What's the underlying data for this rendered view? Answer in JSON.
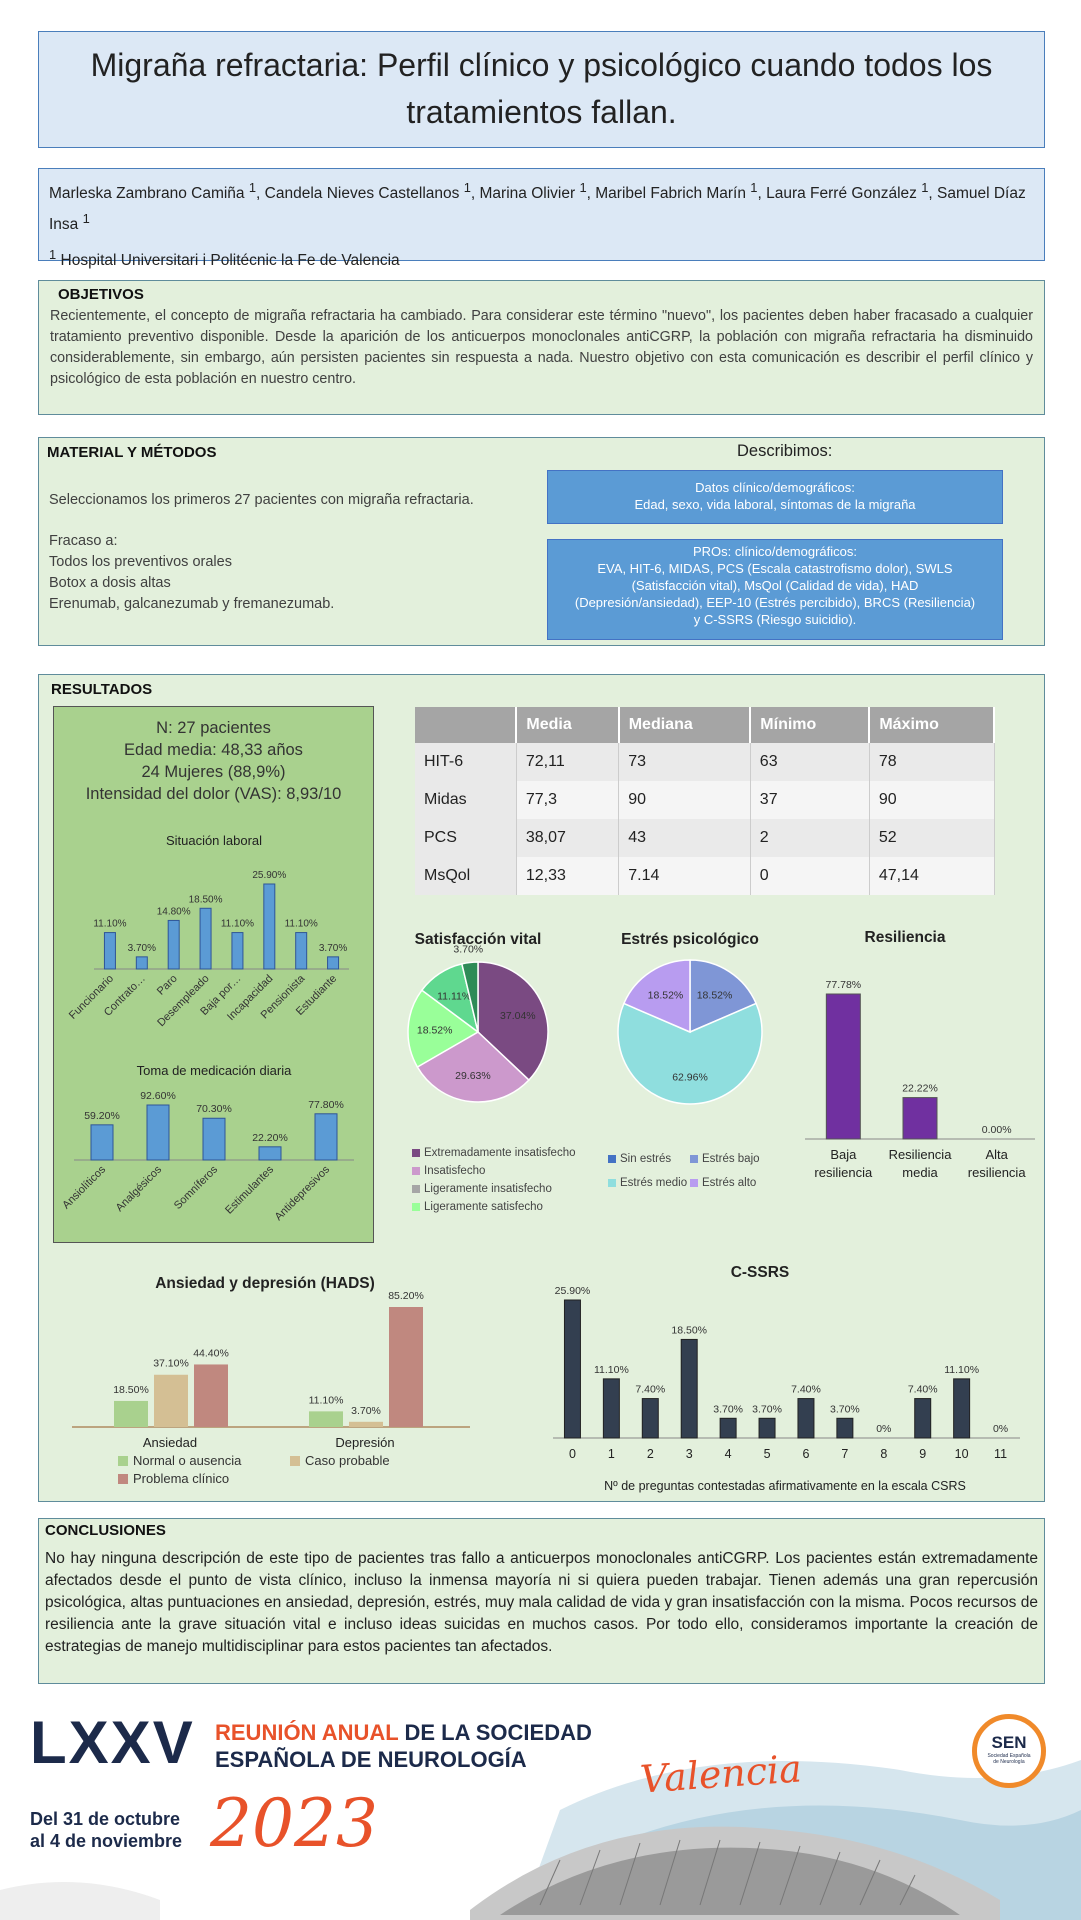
{
  "title": "Migraña refractaria: Perfil clínico y psicológico cuando todos los tratamientos fallan.",
  "authors": {
    "names": [
      {
        "name": "Marleska Zambrano Camiña",
        "sup": "1"
      },
      {
        "name": "Candela Nieves Castellanos",
        "sup": "1"
      },
      {
        "name": "Marina Olivier",
        "sup": "1"
      },
      {
        "name": "Maribel Fabrich Marín",
        "sup": "1"
      },
      {
        "name": "Laura Ferré González",
        "sup": "1"
      },
      {
        "name": "Samuel Díaz Insa",
        "sup": "1"
      }
    ],
    "affiliation_sup": "1",
    "affiliation": "Hospital Universitari i Politécnic la Fe de Valencia"
  },
  "objetivos": {
    "heading": "OBJETIVOS",
    "text": "Recientemente, el concepto de migraña refractaria ha cambiado. Para considerar este término \"nuevo\", los pacientes deben haber fracasado a cualquier tratamiento preventivo disponible. Desde la aparición de los anticuerpos monoclonales antiCGRP, la población con migraña refractaria ha disminuido considerablemente, sin embargo, aún persisten pacientes sin respuesta a nada. Nuestro objetivo con esta comunicación es describir el perfil clínico y psicológico de esta población en nuestro centro."
  },
  "metodos": {
    "heading": "MATERIAL Y MÉTODOS",
    "intro": "Seleccionamos los primeros 27 pacientes con migraña refractaria.",
    "fracaso_label": "Fracaso a:",
    "fracaso_items": [
      "Todos los preventivos orales",
      "Botox a dosis altas",
      "Erenumab, galcanezumab y fremanezumab."
    ],
    "describimos": "Describimos:",
    "box1_title": "Datos clínico/demográficos:",
    "box1_text": "Edad, sexo, vida laboral, síntomas de la migraña",
    "box2_title": "PROs: clínico/demográficos:",
    "box2_text": "EVA, HIT-6, MIDAS, PCS (Escala catastrofismo dolor), SWLS (Satisfacción vital), MsQol (Calidad de vida), HAD (Depresión/ansiedad), EEP-10 (Estrés percibido), BRCS (Resiliencia) y C-SSRS (Riesgo suicidio)."
  },
  "resultados": {
    "heading": "RESULTADOS",
    "summary": [
      "N: 27 pacientes",
      "Edad media: 48,33 años",
      "24 Mujeres (88,9%)",
      "Intensidad del dolor (VAS): 8,93/10"
    ],
    "table": {
      "headers": [
        "",
        "Media",
        "Mediana",
        "Mínimo",
        "Máximo"
      ],
      "rows": [
        [
          "HIT-6",
          "72,11",
          "73",
          "63",
          "78"
        ],
        [
          "Midas",
          "77,3",
          "90",
          "37",
          "90"
        ],
        [
          "PCS",
          "38,07",
          "43",
          "2",
          "52"
        ],
        [
          "MsQol",
          "12,33",
          "7.14",
          "0",
          "47,14"
        ]
      ]
    }
  },
  "conclusiones": {
    "heading": "CONCLUSIONES",
    "text": " No hay ninguna descripción de este tipo de pacientes tras fallo a anticuerpos monoclonales antiCGRP. Los pacientes están extremadamente afectados desde el punto de vista clínico, incluso la inmensa mayoría ni si quiera pueden trabajar. Tienen además una gran repercusión psicológica, altas puntuaciones en ansiedad, depresión, estrés, muy mala calidad de vida y gran insatisfacción con la misma. Pocos recursos de resiliencia ante la grave situación vital e incluso ideas suicidas en muchos casos. Por todo ello, consideramos importante la creación de estrategias de manejo multidisciplinar para estos pacientes tan afectados."
  },
  "banner": {
    "roman": "LXXV",
    "line1a": "REUNIÓN ANUAL",
    "line1b": " DE LA SOCIEDAD",
    "line2": "ESPAÑOLA DE NEUROLOGÍA",
    "city": "Valencia",
    "dates1": "Del 31 de octubre",
    "dates2": "al 4 de noviembre",
    "year": "2023",
    "logo_text": "SEN",
    "logo_sub": "Sociedad Española de Neurología"
  },
  "colors": {
    "blue_bar": "#5b9bd5",
    "purple": "#7030a0",
    "navy": "#333f50",
    "orange": "#e8522a"
  },
  "chart_data": [
    {
      "id": "laboral",
      "type": "bar",
      "title": "Situación laboral",
      "categories": [
        "Funcionario",
        "Contrato…",
        "Paro",
        "Desempleado",
        "Baja por…",
        "Incapacidad",
        "Pensionista",
        "Estudiante"
      ],
      "values": [
        11.1,
        3.7,
        14.8,
        18.5,
        11.1,
        25.9,
        11.1,
        3.7
      ],
      "labels": [
        "11.10%",
        "3.70%",
        "14.80%",
        "18.50%",
        "11.10%",
        "25.90%",
        "11.10%",
        "3.70%"
      ]
    },
    {
      "id": "medicacion",
      "type": "bar",
      "title": "Toma de medicación diaria",
      "categories": [
        "Ansiolíticos",
        "Analgésicos",
        "Somníferos",
        "Estimulantes",
        "Antidepresivos"
      ],
      "values": [
        59.2,
        92.6,
        70.3,
        22.2,
        77.8
      ],
      "labels": [
        "59.20%",
        "92.60%",
        "70.30%",
        "22.20%",
        "77.80%"
      ]
    },
    {
      "id": "satisfaccion",
      "type": "pie",
      "title": "Satisfacción vital",
      "slices": [
        {
          "name": "Extremadamente insatisfecho",
          "value": 37.04,
          "label": "37.04%",
          "color": "#7a4a82"
        },
        {
          "name": "Insatisfecho",
          "value": 29.63,
          "label": "29.63%",
          "color": "#cc99cc"
        },
        {
          "name": "Ligeramente insatisfecho",
          "value": 0,
          "label": "",
          "color": "#a6a6a6"
        },
        {
          "name": "Ligeramente satisfecho",
          "value": 18.52,
          "label": "18.52%",
          "color": "#99ff99"
        },
        {
          "name": "",
          "value": 11.11,
          "label": "11.11%",
          "color": "#5fd88f"
        },
        {
          "name": "",
          "value": 3.7,
          "label": "3.70%",
          "color": "#2e8b57"
        }
      ]
    },
    {
      "id": "estres",
      "type": "pie",
      "title": "Estrés psicológico",
      "slices": [
        {
          "name": "Sin estrés",
          "value": 0,
          "label": "",
          "color": "#4472c4"
        },
        {
          "name": "Estrés bajo",
          "value": 18.52,
          "label": "18.52%",
          "color": "#7f96d6"
        },
        {
          "name": "Estrés medio",
          "value": 62.96,
          "label": "62.96%",
          "color": "#8fdede"
        },
        {
          "name": "Estrés alto",
          "value": 18.52,
          "label": "18.52%",
          "color": "#b89cf0"
        }
      ]
    },
    {
      "id": "resiliencia",
      "type": "bar",
      "title": "Resiliencia",
      "categories": [
        "Baja resiliencia",
        "Resiliencia media",
        "Alta resiliencia"
      ],
      "values": [
        77.78,
        22.22,
        0.0
      ],
      "labels": [
        "77.78%",
        "22.22%",
        "0.00%"
      ]
    },
    {
      "id": "hads",
      "type": "bar",
      "title": "Ansiedad y depresión (HADS)",
      "categories": [
        "Ansiedad",
        "Depresión"
      ],
      "series": [
        {
          "name": "Normal o ausencia",
          "values": [
            18.5,
            11.1
          ],
          "labels": [
            "18.50%",
            "11.10%"
          ],
          "color": "#a9d18e"
        },
        {
          "name": "Caso probable",
          "values": [
            37.1,
            3.7
          ],
          "labels": [
            "37.10%",
            "3.70%"
          ],
          "color": "#d4bf94"
        },
        {
          "name": "Problema clínico",
          "values": [
            44.4,
            85.2
          ],
          "labels": [
            "44.40%",
            "85.20%"
          ],
          "color": "#c0887f"
        }
      ]
    },
    {
      "id": "cssrs",
      "type": "bar",
      "title": "C-SSRS",
      "xlabel": "Nº de preguntas contestadas afirmativamente en la escala CSRS",
      "categories": [
        "0",
        "1",
        "2",
        "3",
        "4",
        "5",
        "6",
        "7",
        "8",
        "9",
        "10",
        "11"
      ],
      "values": [
        25.9,
        11.1,
        7.4,
        18.5,
        3.7,
        3.7,
        7.4,
        3.7,
        0,
        7.4,
        11.1,
        0
      ],
      "labels": [
        "25.90%",
        "11.10%",
        "7.40%",
        "18.50%",
        "3.70%",
        "3.70%",
        "7.40%",
        "3.70%",
        "0%",
        "7.40%",
        "11.10%",
        "0%"
      ]
    }
  ]
}
